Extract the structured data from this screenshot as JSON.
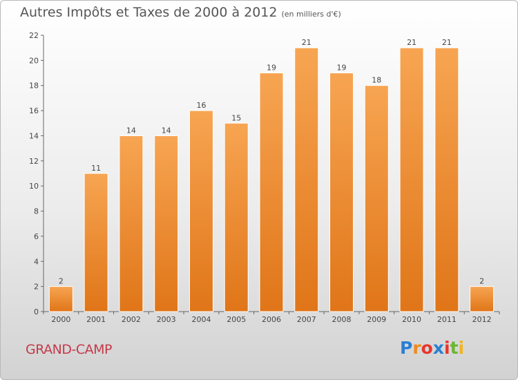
{
  "chart_data": {
    "type": "bar",
    "title": "Autres Impôts et Taxes de 2000 à 2012",
    "subtitle": "(en milliers d'€)",
    "categories": [
      "2000",
      "2001",
      "2002",
      "2003",
      "2004",
      "2005",
      "2006",
      "2007",
      "2008",
      "2009",
      "2010",
      "2011",
      "2012"
    ],
    "values": [
      2,
      11,
      14,
      14,
      16,
      15,
      19,
      21,
      19,
      18,
      21,
      21,
      2
    ],
    "ylim": [
      0,
      22
    ],
    "yticks": [
      0,
      2,
      4,
      6,
      8,
      10,
      12,
      14,
      16,
      18,
      20,
      22
    ],
    "grid": false,
    "bar_color": "#f0902e"
  },
  "commune": "GRAND-CAMP",
  "logo": {
    "letters": [
      "P",
      "r",
      "o",
      "x",
      "i",
      "t",
      "i"
    ],
    "colors": [
      "#2a7fd4",
      "#f08a1c",
      "#e8352c",
      "#2a7fd4",
      "#e8352c",
      "#6ab630",
      "#f0b41c"
    ]
  }
}
